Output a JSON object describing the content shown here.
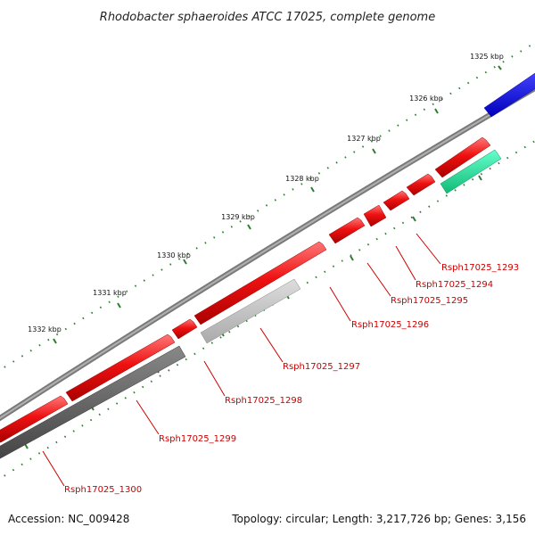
{
  "title": "Rhodobacter sphaeroides ATCC 17025, complete genome",
  "footer": {
    "accession": "Accession: NC_009428",
    "summary": "Topology: circular; Length: 3,217,726 bp; Genes: 3,156"
  },
  "colors": {
    "backbone": "#7a7a7a",
    "forward_cds": "#ee1111",
    "reverse_cds_dark": "#555555",
    "reverse_cds_light": "#bbbbbb",
    "blue_feature": "#1111dd",
    "green_feature": "#22dd99",
    "tick": "#2e7d32",
    "gene_label": "#cc0000"
  },
  "ruler": [
    {
      "label": "1325 kbp"
    },
    {
      "label": "1326 kbp"
    },
    {
      "label": "1327 kbp"
    },
    {
      "label": "1328 kbp"
    },
    {
      "label": "1329 kbp"
    },
    {
      "label": "1330 kbp"
    },
    {
      "label": "1331 kbp"
    },
    {
      "label": "1332 kbp"
    }
  ],
  "gene_labels": [
    {
      "label": "Rsph17025_1293"
    },
    {
      "label": "Rsph17025_1294"
    },
    {
      "label": "Rsph17025_1295"
    },
    {
      "label": "Rsph17025_1296"
    },
    {
      "label": "Rsph17025_1297"
    },
    {
      "label": "Rsph17025_1298"
    },
    {
      "label": "Rsph17025_1299"
    },
    {
      "label": "Rsph17025_1300"
    }
  ]
}
